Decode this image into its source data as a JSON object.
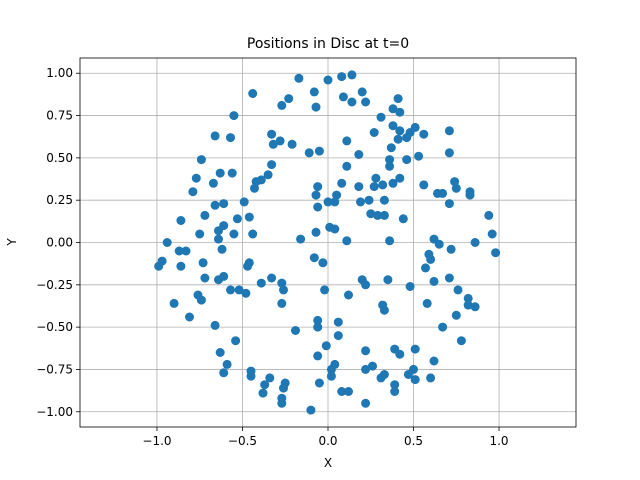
{
  "chart_data": {
    "type": "scatter",
    "title": "Positions in Disc at t=0",
    "xlabel": "X",
    "ylabel": "Y",
    "xlim": [
      -1.45,
      1.45
    ],
    "ylim": [
      -1.09,
      1.09
    ],
    "grid": true,
    "marker_color": "#1f77b4",
    "x_ticks": [
      -1.0,
      -0.5,
      0.0,
      0.5,
      1.0
    ],
    "x_tick_labels": [
      "−1.0",
      "−0.5",
      "0.0",
      "0.5",
      "1.0"
    ],
    "y_ticks": [
      1.0,
      0.75,
      0.5,
      0.25,
      0.0,
      -0.25,
      -0.5,
      -0.75,
      -1.0
    ],
    "y_tick_labels": [
      "1.00",
      "0.75",
      "0.50",
      "0.25",
      "0.00",
      "−0.25",
      "−0.50",
      "−0.75",
      "−1.00"
    ],
    "points": [
      [
        -0.17,
        0.97
      ],
      [
        0.0,
        0.96
      ],
      [
        0.08,
        0.98
      ],
      [
        0.14,
        0.99
      ],
      [
        0.2,
        0.89
      ],
      [
        -0.23,
        0.85
      ],
      [
        -0.08,
        0.89
      ],
      [
        0.09,
        0.86
      ],
      [
        0.14,
        0.83
      ],
      [
        0.22,
        0.83
      ],
      [
        0.41,
        0.85
      ],
      [
        -0.44,
        0.88
      ],
      [
        -0.55,
        0.75
      ],
      [
        -0.27,
        0.81
      ],
      [
        -0.07,
        0.8
      ],
      [
        0.38,
        0.79
      ],
      [
        0.42,
        0.77
      ],
      [
        0.31,
        0.74
      ],
      [
        0.38,
        0.69
      ],
      [
        0.42,
        0.66
      ],
      [
        0.48,
        0.65
      ],
      [
        0.51,
        0.68
      ],
      [
        0.56,
        0.64
      ],
      [
        0.71,
        0.66
      ],
      [
        -0.66,
        0.63
      ],
      [
        -0.57,
        0.62
      ],
      [
        -0.33,
        0.64
      ],
      [
        -0.32,
        0.58
      ],
      [
        -0.28,
        0.6
      ],
      [
        -0.21,
        0.58
      ],
      [
        -0.11,
        0.53
      ],
      [
        -0.05,
        0.54
      ],
      [
        0.11,
        0.6
      ],
      [
        0.27,
        0.65
      ],
      [
        0.37,
        0.56
      ],
      [
        0.41,
        0.61
      ],
      [
        0.46,
        0.62
      ],
      [
        0.36,
        0.49
      ],
      [
        0.36,
        0.45
      ],
      [
        0.46,
        0.49
      ],
      [
        0.53,
        0.51
      ],
      [
        0.71,
        0.53
      ],
      [
        -0.74,
        0.49
      ],
      [
        -0.33,
        0.46
      ],
      [
        -0.35,
        0.4
      ],
      [
        -0.39,
        0.37
      ],
      [
        -0.42,
        0.36
      ],
      [
        -0.43,
        0.32
      ],
      [
        -0.63,
        0.41
      ],
      [
        -0.56,
        0.41
      ],
      [
        -0.77,
        0.38
      ],
      [
        -0.79,
        0.3
      ],
      [
        -0.67,
        0.35
      ],
      [
        -0.66,
        0.22
      ],
      [
        -0.61,
        0.23
      ],
      [
        -0.49,
        0.24
      ],
      [
        0.08,
        0.35
      ],
      [
        0.11,
        0.45
      ],
      [
        0.18,
        0.52
      ],
      [
        0.28,
        0.38
      ],
      [
        0.32,
        0.34
      ],
      [
        0.38,
        0.35
      ],
      [
        0.42,
        0.38
      ],
      [
        0.27,
        0.33
      ],
      [
        0.18,
        0.33
      ],
      [
        0.05,
        0.28
      ],
      [
        0.04,
        0.24
      ],
      [
        0.0,
        0.24
      ],
      [
        -0.06,
        0.33
      ],
      [
        -0.07,
        0.28
      ],
      [
        -0.06,
        0.21
      ],
      [
        0.19,
        0.24
      ],
      [
        0.24,
        0.25
      ],
      [
        0.25,
        0.17
      ],
      [
        0.29,
        0.16
      ],
      [
        0.33,
        0.25
      ],
      [
        0.33,
        0.16
      ],
      [
        0.44,
        0.14
      ],
      [
        0.56,
        0.34
      ],
      [
        0.64,
        0.29
      ],
      [
        0.67,
        0.29
      ],
      [
        0.74,
        0.36
      ],
      [
        0.75,
        0.32
      ],
      [
        0.83,
        0.3
      ],
      [
        0.83,
        0.28
      ],
      [
        0.71,
        0.23
      ],
      [
        -0.53,
        0.14
      ],
      [
        -0.46,
        0.15
      ],
      [
        -0.72,
        0.16
      ],
      [
        -0.86,
        0.13
      ],
      [
        -0.75,
        0.05
      ],
      [
        -0.64,
        0.07
      ],
      [
        -0.61,
        0.1
      ],
      [
        -0.64,
        0.02
      ],
      [
        -0.55,
        0.05
      ],
      [
        -0.44,
        0.05
      ],
      [
        -0.62,
        -0.04
      ],
      [
        -0.87,
        -0.05
      ],
      [
        -0.83,
        -0.05
      ],
      [
        -0.73,
        -0.12
      ],
      [
        -0.72,
        -0.21
      ],
      [
        -0.64,
        -0.22
      ],
      [
        -0.61,
        -0.2
      ],
      [
        -0.46,
        -0.12
      ],
      [
        -0.47,
        -0.14
      ],
      [
        -0.94,
        0.0
      ],
      [
        -0.97,
        -0.11
      ],
      [
        -0.99,
        -0.14
      ],
      [
        -0.86,
        -0.14
      ],
      [
        -0.9,
        -0.36
      ],
      [
        -0.76,
        -0.31
      ],
      [
        -0.74,
        -0.34
      ],
      [
        -0.57,
        -0.28
      ],
      [
        -0.52,
        -0.28
      ],
      [
        -0.48,
        -0.3
      ],
      [
        -0.39,
        -0.24
      ],
      [
        -0.33,
        -0.21
      ],
      [
        -0.27,
        -0.24
      ],
      [
        -0.26,
        -0.28
      ],
      [
        -0.27,
        -0.36
      ],
      [
        -0.16,
        0.02
      ],
      [
        -0.07,
        0.06
      ],
      [
        -0.08,
        -0.09
      ],
      [
        -0.03,
        -0.12
      ],
      [
        0.01,
        0.09
      ],
      [
        0.04,
        0.08
      ],
      [
        0.11,
        0.01
      ],
      [
        0.2,
        -0.22
      ],
      [
        0.22,
        -0.25
      ],
      [
        0.35,
        -0.22
      ],
      [
        0.36,
        0.01
      ],
      [
        0.48,
        -0.26
      ],
      [
        0.58,
        -0.36
      ],
      [
        0.57,
        -0.15
      ],
      [
        0.62,
        -0.23
      ],
      [
        0.71,
        -0.21
      ],
      [
        0.59,
        -0.07
      ],
      [
        0.6,
        -0.1
      ],
      [
        0.62,
        0.02
      ],
      [
        0.65,
        -0.01
      ],
      [
        0.72,
        -0.04
      ],
      [
        0.86,
        0.0
      ],
      [
        0.94,
        0.16
      ],
      [
        0.96,
        0.05
      ],
      [
        0.98,
        -0.06
      ],
      [
        0.76,
        -0.28
      ],
      [
        0.82,
        -0.33
      ],
      [
        0.82,
        -0.37
      ],
      [
        0.86,
        -0.38
      ],
      [
        0.75,
        -0.43
      ],
      [
        0.67,
        -0.5
      ],
      [
        0.78,
        -0.58
      ],
      [
        -0.81,
        -0.44
      ],
      [
        -0.66,
        -0.49
      ],
      [
        -0.54,
        -0.58
      ],
      [
        -0.63,
        -0.65
      ],
      [
        -0.59,
        -0.72
      ],
      [
        -0.61,
        -0.77
      ],
      [
        -0.45,
        -0.76
      ],
      [
        -0.45,
        -0.79
      ],
      [
        -0.34,
        -0.8
      ],
      [
        -0.37,
        -0.84
      ],
      [
        -0.25,
        -0.83
      ],
      [
        -0.26,
        -0.86
      ],
      [
        -0.38,
        -0.89
      ],
      [
        -0.27,
        -0.92
      ],
      [
        -0.27,
        -0.95
      ],
      [
        -0.1,
        -0.99
      ],
      [
        -0.19,
        -0.52
      ],
      [
        -0.06,
        -0.46
      ],
      [
        -0.06,
        -0.5
      ],
      [
        -0.02,
        -0.28
      ],
      [
        0.06,
        -0.47
      ],
      [
        0.12,
        -0.31
      ],
      [
        0.06,
        -0.55
      ],
      [
        -0.01,
        -0.61
      ],
      [
        -0.06,
        -0.67
      ],
      [
        0.04,
        -0.72
      ],
      [
        0.02,
        -0.75
      ],
      [
        0.02,
        -0.79
      ],
      [
        -0.05,
        -0.83
      ],
      [
        0.08,
        -0.88
      ],
      [
        0.12,
        -0.88
      ],
      [
        0.22,
        -0.95
      ],
      [
        0.22,
        -0.75
      ],
      [
        0.26,
        -0.73
      ],
      [
        0.31,
        -0.8
      ],
      [
        0.33,
        -0.78
      ],
      [
        0.39,
        -0.84
      ],
      [
        0.39,
        -0.88
      ],
      [
        0.22,
        -0.64
      ],
      [
        0.32,
        -0.37
      ],
      [
        0.33,
        -0.4
      ],
      [
        0.39,
        -0.63
      ],
      [
        0.42,
        -0.66
      ],
      [
        0.47,
        -0.78
      ],
      [
        0.5,
        -0.75
      ],
      [
        0.51,
        -0.81
      ],
      [
        0.51,
        -0.63
      ],
      [
        0.6,
        -0.8
      ],
      [
        0.62,
        -0.7
      ]
    ]
  }
}
